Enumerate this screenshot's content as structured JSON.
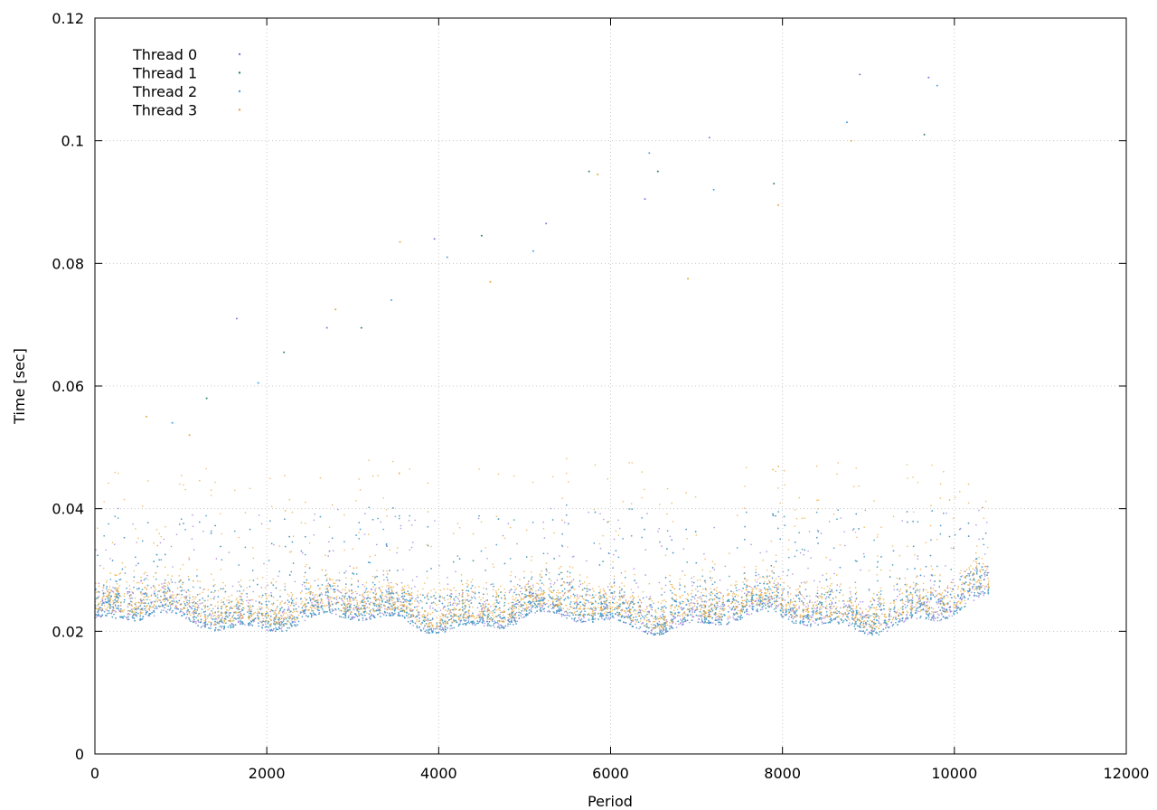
{
  "chart_data": {
    "type": "scatter",
    "title": "",
    "xlabel": "Period",
    "ylabel": "Time [sec]",
    "xlim": [
      0,
      12000
    ],
    "ylim": [
      0,
      0.12
    ],
    "x_ticks": [
      "0",
      "2000",
      "4000",
      "6000",
      "8000",
      "10000",
      "12000"
    ],
    "y_ticks": [
      "0",
      "0.02",
      "0.04",
      "0.06",
      "0.08",
      "0.1",
      "0.12"
    ],
    "grid": true,
    "legend_position": "top-left",
    "series": [
      {
        "name": "Thread 0",
        "color": "#9370db",
        "x_range": [
          0,
          10400
        ],
        "typical_y": 0.022,
        "spread_y": [
          0.017,
          0.045
        ],
        "outliers": [
          [
            1650,
            0.071
          ],
          [
            2700,
            0.0695
          ],
          [
            3950,
            0.084
          ],
          [
            5250,
            0.0865
          ],
          [
            6400,
            0.0905
          ],
          [
            7150,
            0.1005
          ],
          [
            8900,
            0.1108
          ],
          [
            9700,
            0.1103
          ]
        ]
      },
      {
        "name": "Thread 1",
        "color": "#2e8b57",
        "x_range": [
          0,
          10400
        ],
        "typical_y": 0.022,
        "spread_y": [
          0.017,
          0.045
        ],
        "outliers": [
          [
            1300,
            0.058
          ],
          [
            2200,
            0.0655
          ],
          [
            3100,
            0.0695
          ],
          [
            4500,
            0.0845
          ],
          [
            5750,
            0.095
          ],
          [
            6550,
            0.095
          ],
          [
            7900,
            0.093
          ],
          [
            9650,
            0.101
          ]
        ]
      },
      {
        "name": "Thread 2",
        "color": "#4aa3e8",
        "x_range": [
          0,
          10400
        ],
        "typical_y": 0.022,
        "spread_y": [
          0.017,
          0.045
        ],
        "outliers": [
          [
            900,
            0.054
          ],
          [
            1900,
            0.0605
          ],
          [
            3450,
            0.074
          ],
          [
            4100,
            0.081
          ],
          [
            5100,
            0.082
          ],
          [
            6450,
            0.098
          ],
          [
            7200,
            0.092
          ],
          [
            8750,
            0.103
          ],
          [
            9800,
            0.109
          ]
        ]
      },
      {
        "name": "Thread 3",
        "color": "#e8a838",
        "x_range": [
          0,
          10400
        ],
        "typical_y": 0.023,
        "spread_y": [
          0.016,
          0.055
        ],
        "outliers": [
          [
            600,
            0.055
          ],
          [
            1100,
            0.052
          ],
          [
            2800,
            0.0725
          ],
          [
            3550,
            0.0835
          ],
          [
            4600,
            0.077
          ],
          [
            5850,
            0.0945
          ],
          [
            6900,
            0.0775
          ],
          [
            7950,
            0.0895
          ],
          [
            8800,
            0.1
          ]
        ]
      }
    ]
  }
}
